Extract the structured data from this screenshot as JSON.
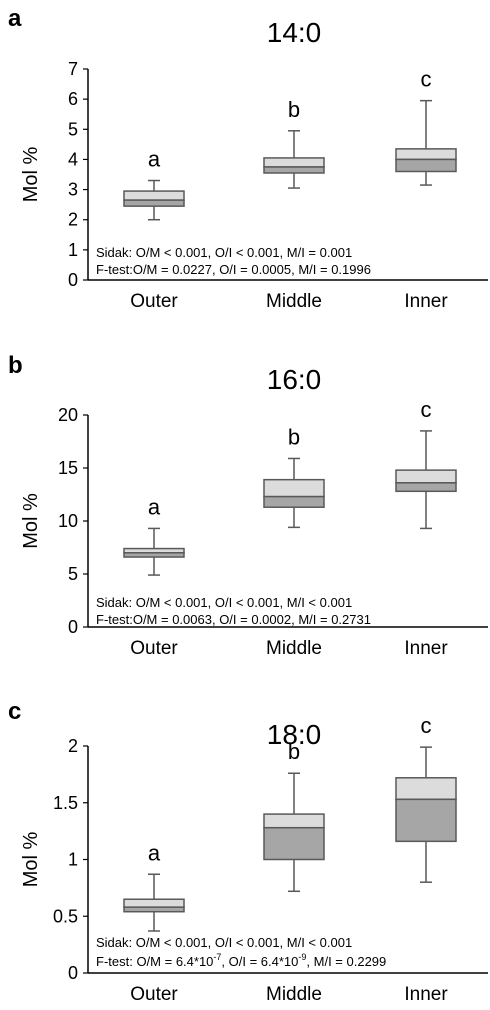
{
  "chart_data": [
    {
      "type": "box",
      "panel": "a",
      "title": "14:0",
      "ylabel": "Mol %",
      "ylim": [
        0,
        7
      ],
      "yticks": [
        "0",
        "1",
        "2",
        "3",
        "4",
        "5",
        "6",
        "7"
      ],
      "categories": [
        "Outer",
        "Middle",
        "Inner"
      ],
      "boxes": [
        {
          "category": "Outer",
          "min": 2.0,
          "q1": 2.45,
          "median": 2.65,
          "q3": 2.95,
          "max": 3.3,
          "letter": "a"
        },
        {
          "category": "Middle",
          "min": 3.05,
          "q1": 3.55,
          "median": 3.75,
          "q3": 4.05,
          "max": 4.95,
          "letter": "b"
        },
        {
          "category": "Inner",
          "min": 3.15,
          "q1": 3.6,
          "median": 4.0,
          "q3": 4.35,
          "max": 5.95,
          "letter": "c"
        }
      ],
      "stats": [
        {
          "prefix": "Sidak: O/M < 0.001, O/I < 0.001, M/I = 0.001"
        },
        {
          "prefix": "F-test:O/M = 0.0227, O/I = 0.0005, M/I = 0.1996"
        }
      ]
    },
    {
      "type": "box",
      "panel": "b",
      "title": "16:0",
      "ylabel": "Mol %",
      "ylim": [
        0,
        20
      ],
      "yticks": [
        "0",
        "5",
        "10",
        "15",
        "20"
      ],
      "categories": [
        "Outer",
        "Middle",
        "Inner"
      ],
      "boxes": [
        {
          "category": "Outer",
          "min": 4.9,
          "q1": 6.6,
          "median": 7.0,
          "q3": 7.4,
          "max": 9.3,
          "letter": "a"
        },
        {
          "category": "Middle",
          "min": 9.4,
          "q1": 11.3,
          "median": 12.3,
          "q3": 13.9,
          "max": 15.9,
          "letter": "b"
        },
        {
          "category": "Inner",
          "min": 9.3,
          "q1": 12.8,
          "median": 13.6,
          "q3": 14.8,
          "max": 18.5,
          "letter": "c"
        }
      ],
      "stats": [
        {
          "prefix": "Sidak: O/M < 0.001, O/I < 0.001, M/I < 0.001"
        },
        {
          "prefix": "F-test:O/M = 0.0063, O/I = 0.0002, M/I = 0.2731"
        }
      ]
    },
    {
      "type": "box",
      "panel": "c",
      "title": "18:0",
      "ylabel": "Mol %",
      "ylim": [
        0,
        2
      ],
      "yticks": [
        "0",
        "0.5",
        "1",
        "1.5",
        "2"
      ],
      "categories": [
        "Outer",
        "Middle",
        "Inner"
      ],
      "boxes": [
        {
          "category": "Outer",
          "min": 0.37,
          "q1": 0.54,
          "median": 0.58,
          "q3": 0.65,
          "max": 0.87,
          "letter": "a"
        },
        {
          "category": "Middle",
          "min": 0.72,
          "q1": 1.0,
          "median": 1.28,
          "q3": 1.4,
          "max": 1.76,
          "letter": "b"
        },
        {
          "category": "Inner",
          "min": 0.8,
          "q1": 1.16,
          "median": 1.53,
          "q3": 1.72,
          "max": 1.99,
          "letter": "c"
        }
      ],
      "stats": [
        {
          "prefix": "Sidak: O/M < 0.001, O/I < 0.001, M/I < 0.001"
        },
        {
          "prefix": "F-test: O/M = 6.4*10",
          "sup1": "-7",
          "mid": ", O/I = 6.4*10",
          "sup2": "-9",
          "suffix": ", M/I = 0.2299"
        }
      ]
    }
  ],
  "colors": {
    "upper_box": "#dcdcdc",
    "lower_box": "#a6a6a6",
    "outline": "#595959",
    "axis": "#000000"
  }
}
